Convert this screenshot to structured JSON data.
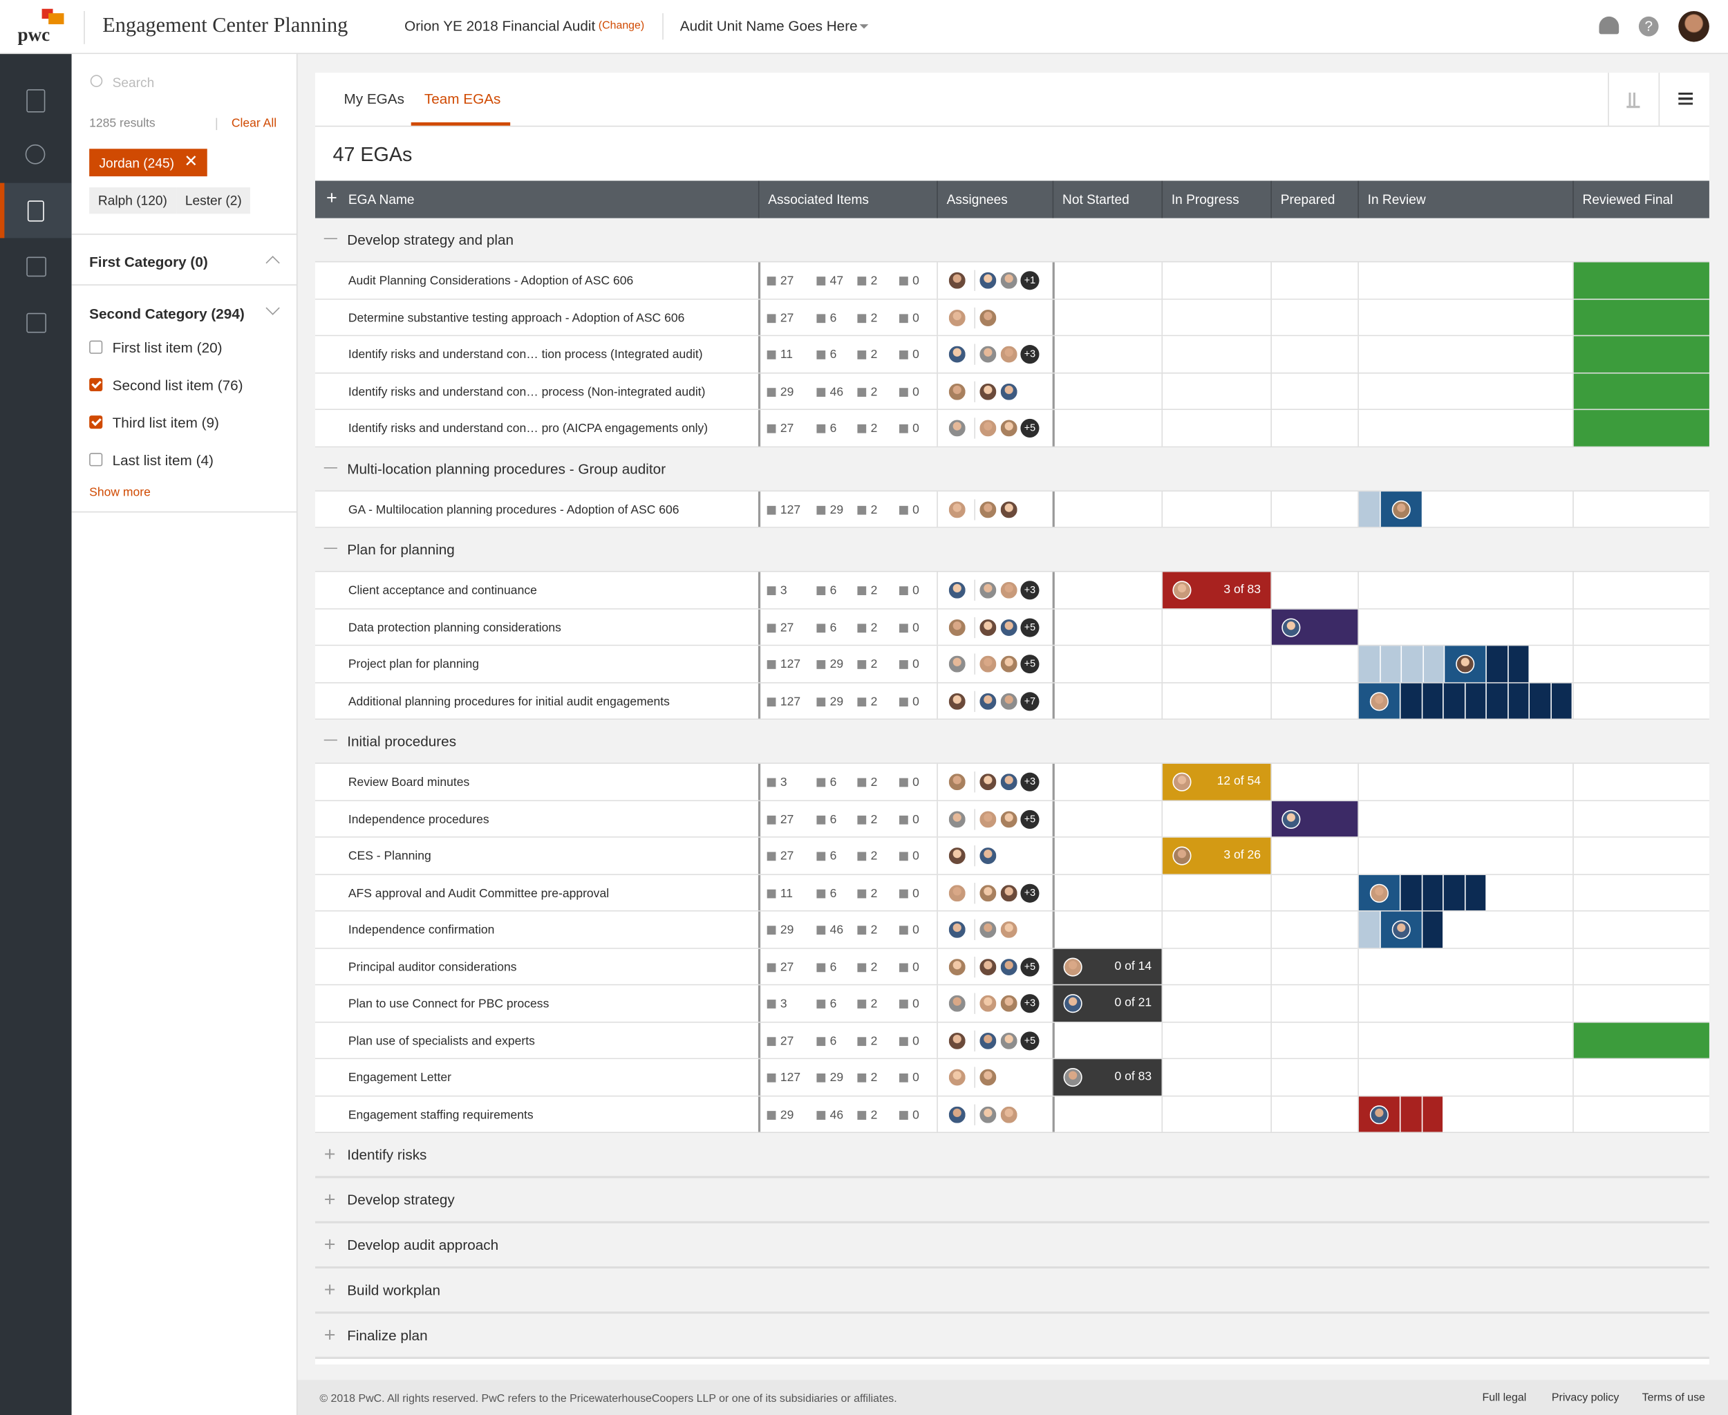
{
  "header": {
    "logo": "pwc",
    "title": "Engagement Center Planning",
    "engagement": "Orion YE 2018 Financial Audit",
    "change": "(Change)",
    "audit_unit": "Audit Unit Name Goes Here"
  },
  "filters": {
    "search": "Search",
    "results": "1285 results",
    "clear": "Clear All",
    "active_chip": "Jordan (245)",
    "chips": [
      "Ralph (120)",
      "Lester (2)"
    ],
    "categories": [
      {
        "name": "First Category (0)",
        "items": []
      },
      {
        "name": "Second Category (294)",
        "items": [
          {
            "label": "First list item (20)",
            "checked": false
          },
          {
            "label": "Second list item (76)",
            "checked": true
          },
          {
            "label": "Third list item (9)",
            "checked": true
          },
          {
            "label": "Last list item (4)",
            "checked": false
          }
        ]
      }
    ],
    "show_more": "Show more"
  },
  "tabs": {
    "items": [
      "My EGAs",
      "Team EGAs"
    ],
    "active": 1
  },
  "count_title": "47 EGAs",
  "table": {
    "columns": [
      "EGA Name",
      "Associated Items",
      "Assignees",
      "Not Started",
      "In Progress",
      "Prepared",
      "In Review",
      "Reviewed Final"
    ],
    "groups": [
      {
        "name": "Develop strategy and plan",
        "expanded": true,
        "rows": [
          {
            "name": "Audit Planning Considerations - Adoption of ASC 606",
            "items": [
              27,
              47,
              2,
              0
            ],
            "avatars": 3,
            "more": "+1",
            "status": {
              "stage": "Reviewed Final",
              "color": "#3c9c3c"
            }
          },
          {
            "name": "Determine substantive testing approach - Adoption of ASC 606",
            "items": [
              27,
              6,
              2,
              0
            ],
            "avatars": 2,
            "status": {
              "stage": "Reviewed Final",
              "color": "#3c9c3c"
            }
          },
          {
            "name": "Identify risks and understand con… tion process (Integrated audit)",
            "items": [
              11,
              6,
              2,
              0
            ],
            "avatars": 3,
            "more": "+3",
            "status": {
              "stage": "Reviewed Final",
              "color": "#3c9c3c"
            }
          },
          {
            "name": "Identify risks and understand con… process (Non-integrated audit)",
            "items": [
              29,
              46,
              2,
              0
            ],
            "avatars": 3,
            "status": {
              "stage": "Reviewed Final",
              "color": "#3c9c3c"
            }
          },
          {
            "name": "Identify risks and understand con… pro (AICPA engagements only)",
            "items": [
              27,
              6,
              2,
              0
            ],
            "avatars": 3,
            "more": "+5",
            "status": {
              "stage": "Reviewed Final",
              "color": "#3c9c3c"
            }
          }
        ]
      },
      {
        "name": "Multi-location planning procedures - Group auditor",
        "expanded": true,
        "rows": [
          {
            "name": "GA - Multilocation planning procedures - Adoption of ASC 606",
            "items": [
              127,
              29,
              2,
              0
            ],
            "avatars": 3,
            "status": {
              "stage": "In Review",
              "color": "#0c2b53",
              "accent": "#1d5586",
              "segments": [
                "light",
                "avatar"
              ]
            }
          }
        ]
      },
      {
        "name": "Plan for planning",
        "expanded": true,
        "rows": [
          {
            "name": "Client acceptance and continuance",
            "items": [
              3,
              6,
              2,
              0
            ],
            "avatars": 3,
            "more": "+3",
            "status": {
              "stage": "In Progress",
              "color": "#a8221f",
              "label": "3 of 83"
            }
          },
          {
            "name": "Data protection planning considerations",
            "items": [
              27,
              6,
              2,
              0
            ],
            "avatars": 3,
            "more": "+5",
            "status": {
              "stage": "Prepared",
              "color": "#3c2a66"
            }
          },
          {
            "name": "Project plan for planning",
            "items": [
              127,
              29,
              2,
              0
            ],
            "avatars": 3,
            "more": "+5",
            "status": {
              "stage": "In Review",
              "color": "#0c2b53",
              "accent": "#1d5586",
              "segments": [
                "light",
                "light",
                "light",
                "light",
                "avatar",
                "dark",
                "dark"
              ]
            }
          },
          {
            "name": "Additional planning procedures for initial audit engagements",
            "items": [
              127,
              29,
              2,
              0
            ],
            "avatars": 3,
            "more": "+7",
            "status": {
              "stage": "In Review",
              "color": "#0c2b53",
              "accent": "#1d5586",
              "segments": [
                "avatar",
                "dark",
                "dark",
                "dark",
                "dark",
                "dark",
                "dark",
                "dark",
                "dark"
              ]
            }
          }
        ]
      },
      {
        "name": "Initial procedures",
        "expanded": true,
        "rows": [
          {
            "name": "Review Board minutes",
            "items": [
              3,
              6,
              2,
              0
            ],
            "avatars": 3,
            "more": "+3",
            "status": {
              "stage": "In Progress",
              "color": "#d39a14",
              "label": "12 of 54"
            }
          },
          {
            "name": "Independence procedures",
            "items": [
              27,
              6,
              2,
              0
            ],
            "avatars": 3,
            "more": "+5",
            "status": {
              "stage": "Prepared",
              "color": "#3c2a66"
            }
          },
          {
            "name": "CES - Planning",
            "items": [
              27,
              6,
              2,
              0
            ],
            "avatars": 2,
            "status": {
              "stage": "In Progress",
              "color": "#d39a14",
              "label": "3 of 26"
            }
          },
          {
            "name": "AFS approval and Audit Committee pre-approval",
            "items": [
              11,
              6,
              2,
              0
            ],
            "avatars": 3,
            "more": "+3",
            "status": {
              "stage": "In Review",
              "color": "#0c2b53",
              "accent": "#1d5586",
              "segments": [
                "avatar",
                "dark",
                "dark",
                "dark",
                "dark"
              ]
            }
          },
          {
            "name": "Independence confirmation",
            "items": [
              29,
              46,
              2,
              0
            ],
            "avatars": 3,
            "status": {
              "stage": "In Review",
              "color": "#0c2b53",
              "accent": "#1d5586",
              "segments": [
                "light",
                "avatar",
                "dark"
              ]
            }
          },
          {
            "name": "Principal auditor considerations",
            "items": [
              27,
              6,
              2,
              0
            ],
            "avatars": 3,
            "more": "+5",
            "status": {
              "stage": "Not Started",
              "color": "#3a3a3a",
              "label": "0 of 14"
            }
          },
          {
            "name": "Plan to use Connect for PBC process",
            "items": [
              3,
              6,
              2,
              0
            ],
            "avatars": 3,
            "more": "+3",
            "status": {
              "stage": "Not Started",
              "color": "#3a3a3a",
              "label": "0 of 21"
            }
          },
          {
            "name": "Plan use of specialists and experts",
            "items": [
              27,
              6,
              2,
              0
            ],
            "avatars": 3,
            "more": "+5",
            "status": {
              "stage": "Reviewed Final",
              "color": "#3c9c3c"
            }
          },
          {
            "name": "Engagement Letter",
            "items": [
              127,
              29,
              2,
              0
            ],
            "avatars": 2,
            "status": {
              "stage": "Not Started",
              "color": "#3a3a3a",
              "label": "0 of 83"
            }
          },
          {
            "name": "Engagement staffing requirements",
            "items": [
              29,
              46,
              2,
              0
            ],
            "avatars": 3,
            "status": {
              "stage": "In Review",
              "color": "#a8221f",
              "accent": "#a8221f",
              "segments": [
                "avatar",
                "dark",
                "dark"
              ]
            }
          }
        ]
      },
      {
        "name": "Identify risks",
        "expanded": false,
        "rows": []
      },
      {
        "name": "Develop strategy",
        "expanded": false,
        "rows": []
      },
      {
        "name": "Develop audit approach",
        "expanded": false,
        "rows": []
      },
      {
        "name": "Build workplan",
        "expanded": false,
        "rows": []
      },
      {
        "name": "Finalize plan",
        "expanded": false,
        "rows": []
      }
    ]
  },
  "footer": {
    "copyright": "© 2018 PwC. All rights reserved. PwC refers to the PricewaterhouseCoopers LLP or one of its subsidiaries or affiliates.",
    "links": [
      "Full legal",
      "Privacy policy",
      "Terms of use"
    ]
  }
}
